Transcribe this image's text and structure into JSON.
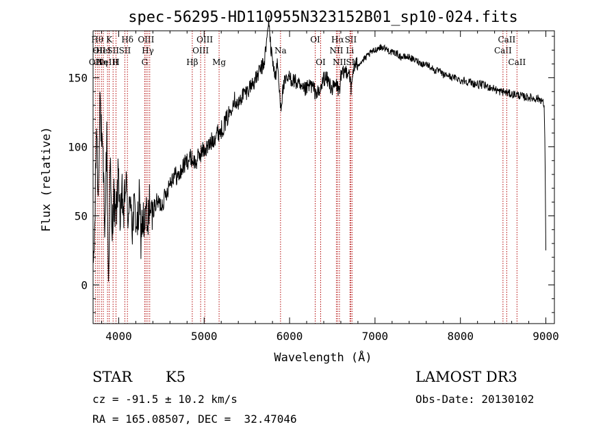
{
  "chart_data": {
    "type": "line",
    "title": "spec-56295-HD110955N323152B01_sp10-024.fits",
    "xlabel": "Wavelength (Å)",
    "ylabel": "Flux (relative)",
    "xlim": [
      3700,
      9100
    ],
    "ylim": [
      -28,
      184
    ],
    "xticks": [
      4000,
      5000,
      6000,
      7000,
      8000,
      9000
    ],
    "yticks": [
      0,
      50,
      100,
      150
    ],
    "grid": false,
    "series": [
      {
        "x": [
          3700,
          3720,
          3740,
          3760,
          3780,
          3800,
          3820,
          3840,
          3860,
          3880,
          3900,
          3920,
          3940,
          3960,
          3980,
          4000,
          4020,
          4040,
          4060,
          4080,
          4100,
          4120,
          4140,
          4160,
          4180,
          4200,
          4220,
          4240,
          4260,
          4280,
          4300,
          4320,
          4340,
          4360,
          4380,
          4400,
          4450,
          4500,
          4550,
          4600,
          4650,
          4700,
          4750,
          4800,
          4850,
          4900,
          4950,
          5000,
          5050,
          5100,
          5150,
          5200,
          5250,
          5300,
          5350,
          5400,
          5450,
          5500,
          5550,
          5600,
          5650,
          5700,
          5730,
          5760,
          5780,
          5800,
          5830,
          5860,
          5880,
          5900,
          5930,
          6000,
          6050,
          6100,
          6150,
          6200,
          6250,
          6300,
          6350,
          6400,
          6450,
          6500,
          6550,
          6580,
          6600,
          6650,
          6700,
          6720,
          6750,
          6800,
          6850,
          6900,
          6950,
          7000,
          7050,
          7100,
          7150,
          7200,
          7250,
          7300,
          7350,
          7400,
          7450,
          7500,
          7550,
          7600,
          7650,
          7700,
          7750,
          7800,
          7850,
          7900,
          7950,
          8000,
          8050,
          8100,
          8150,
          8200,
          8250,
          8300,
          8350,
          8400,
          8450,
          8500,
          8550,
          8600,
          8650,
          8700,
          8750,
          8800,
          8850,
          8900,
          8950,
          8980,
          8990,
          9000
        ],
        "values": [
          10,
          40,
          120,
          60,
          140,
          100,
          80,
          40,
          110,
          -2,
          90,
          30,
          70,
          45,
          60,
          85,
          40,
          65,
          50,
          75,
          60,
          45,
          70,
          40,
          55,
          50,
          40,
          60,
          35,
          50,
          40,
          55,
          35,
          65,
          45,
          55,
          60,
          58,
          65,
          75,
          80,
          78,
          85,
          90,
          92,
          88,
          95,
          98,
          100,
          105,
          110,
          112,
          118,
          125,
          135,
          130,
          138,
          140,
          145,
          148,
          155,
          160,
          175,
          192,
          170,
          165,
          150,
          160,
          140,
          130,
          145,
          150,
          148,
          145,
          140,
          142,
          145,
          140,
          138,
          150,
          148,
          142,
          145,
          140,
          150,
          155,
          155,
          140,
          158,
          160,
          162,
          165,
          168,
          170,
          172,
          172,
          170,
          168,
          168,
          165,
          165,
          165,
          163,
          162,
          160,
          160,
          158,
          155,
          155,
          152,
          152,
          150,
          150,
          148,
          148,
          147,
          146,
          145,
          145,
          144,
          143,
          142,
          140,
          140,
          139,
          138,
          138,
          137,
          136,
          136,
          135,
          135,
          134,
          130,
          100,
          25
        ]
      }
    ],
    "line_markers": [
      {
        "w": 3727,
        "label": "OII",
        "row": 3
      },
      {
        "w": 3750,
        "label": "Hθ",
        "row": 1
      },
      {
        "w": 3771,
        "label": "OII",
        "row": 2
      },
      {
        "w": 3798,
        "label": "Hη",
        "row": 3
      },
      {
        "w": 3820,
        "label": "HeI",
        "row": 2
      },
      {
        "w": 3869,
        "label": "NeIII",
        "row": 3
      },
      {
        "w": 3889,
        "label": "K",
        "row": 1
      },
      {
        "w": 3934,
        "label": "SII",
        "row": 2
      },
      {
        "w": 3968,
        "label": "H",
        "row": 3
      },
      {
        "w": 4072,
        "label": "SII",
        "row": 2
      },
      {
        "w": 4102,
        "label": "Hδ",
        "row": 1
      },
      {
        "w": 4304,
        "label": "G",
        "row": 3
      },
      {
        "w": 4320,
        "label": "OIII",
        "row": 1
      },
      {
        "w": 4341,
        "label": "Hγ",
        "row": 2
      },
      {
        "w": 4363,
        "label": "",
        "row": 0
      },
      {
        "w": 4861,
        "label": "Hβ",
        "row": 3
      },
      {
        "w": 4959,
        "label": "OIII",
        "row": 2
      },
      {
        "w": 5007,
        "label": "OIII",
        "row": 1
      },
      {
        "w": 5175,
        "label": "Mg",
        "row": 3
      },
      {
        "w": 5894,
        "label": "Na",
        "row": 2
      },
      {
        "w": 6300,
        "label": "OI",
        "row": 1
      },
      {
        "w": 6364,
        "label": "OI",
        "row": 3
      },
      {
        "w": 6548,
        "label": "NII",
        "row": 2
      },
      {
        "w": 6563,
        "label": "Hα",
        "row": 1
      },
      {
        "w": 6584,
        "label": "NII",
        "row": 3
      },
      {
        "w": 6707,
        "label": "Li",
        "row": 2
      },
      {
        "w": 6716,
        "label": "SII",
        "row": 1
      },
      {
        "w": 6731,
        "label": "SII",
        "row": 3
      },
      {
        "w": 8498,
        "label": "CaII",
        "row": 2
      },
      {
        "w": 8542,
        "label": "CaII",
        "row": 1
      },
      {
        "w": 8662,
        "label": "CaII",
        "row": 3
      }
    ]
  },
  "info": {
    "class": "STAR",
    "subclass": "K5",
    "velocity": "cz = -91.5 ± 10.2 km/s",
    "coords": "RA = 165.08507, DEC =  32.47046",
    "survey": "LAMOST DR3",
    "obs_date": "Obs-Date: 20130102"
  }
}
